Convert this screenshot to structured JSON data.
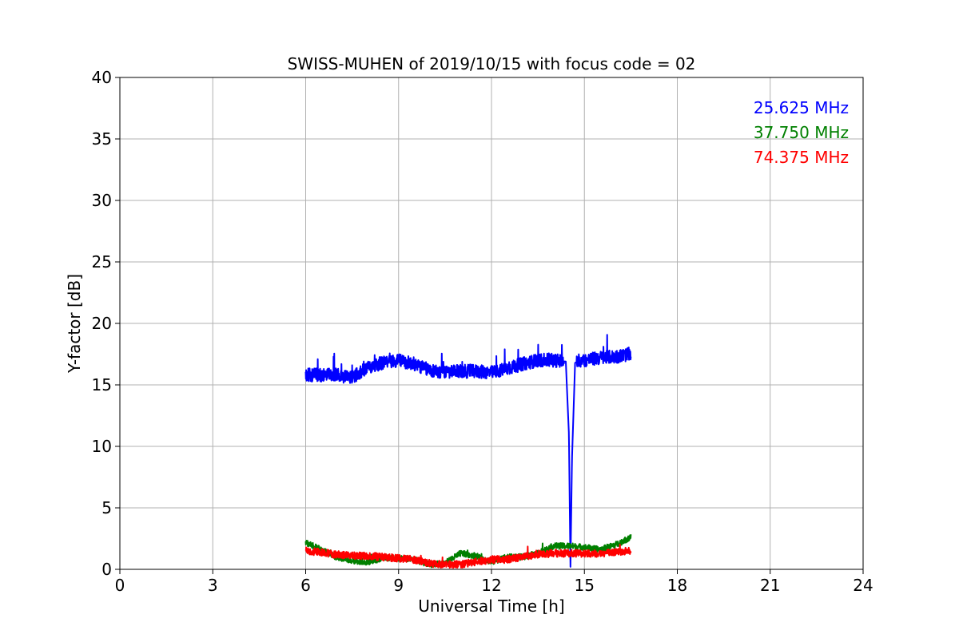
{
  "chart_data": {
    "type": "line",
    "title": "SWISS-MUHEN of 2019/10/15 with focus code = 02",
    "xlabel": "Universal Time [h]",
    "ylabel": "Y-factor [dB]",
    "xlim": [
      0,
      24
    ],
    "ylim": [
      0,
      40
    ],
    "xticks": [
      0,
      3,
      6,
      9,
      12,
      15,
      18,
      21,
      24
    ],
    "yticks": [
      0,
      5,
      10,
      15,
      20,
      25,
      30,
      35,
      40
    ],
    "grid": true,
    "legend_position": "top-right",
    "series": [
      {
        "name": "25.625 MHz",
        "color": "#0000ff",
        "x": [
          6.0,
          6.5,
          7.0,
          7.5,
          8.0,
          8.5,
          9.0,
          9.5,
          10.0,
          10.5,
          11.0,
          11.5,
          12.0,
          12.5,
          13.0,
          13.5,
          14.0,
          14.4,
          14.5,
          14.55,
          14.6,
          14.7,
          15.0,
          15.5,
          16.0,
          16.5
        ],
        "y": [
          15.8,
          15.8,
          15.8,
          15.6,
          16.4,
          16.8,
          17.0,
          16.7,
          16.2,
          16.0,
          16.1,
          16.1,
          16.0,
          16.3,
          16.7,
          17.0,
          17.0,
          16.9,
          11.0,
          0.2,
          9.0,
          16.8,
          17.0,
          17.2,
          17.3,
          17.5
        ]
      },
      {
        "name": "37.750 MHz",
        "color": "#008000",
        "x": [
          6.0,
          6.5,
          7.0,
          7.5,
          8.0,
          8.5,
          9.0,
          9.5,
          10.0,
          10.5,
          11.0,
          11.5,
          12.0,
          12.5,
          13.0,
          13.5,
          14.0,
          14.5,
          15.0,
          15.5,
          16.0,
          16.5
        ],
        "y": [
          2.2,
          1.6,
          1.0,
          0.7,
          0.6,
          0.9,
          0.9,
          0.8,
          0.4,
          0.5,
          1.3,
          1.1,
          0.6,
          1.0,
          1.0,
          1.3,
          1.9,
          1.9,
          1.8,
          1.6,
          2.0,
          2.6
        ]
      },
      {
        "name": "74.375 MHz",
        "color": "#ff0000",
        "x": [
          6.0,
          6.5,
          7.0,
          7.5,
          8.0,
          8.5,
          9.0,
          9.5,
          10.0,
          10.5,
          11.0,
          11.5,
          12.0,
          12.5,
          13.0,
          13.5,
          14.0,
          14.5,
          15.0,
          15.5,
          16.0,
          16.5
        ],
        "y": [
          1.5,
          1.4,
          1.2,
          1.1,
          1.1,
          1.0,
          0.9,
          0.8,
          0.5,
          0.4,
          0.4,
          0.6,
          0.8,
          0.8,
          1.0,
          1.2,
          1.3,
          1.3,
          1.3,
          1.3,
          1.4,
          1.5
        ]
      }
    ]
  }
}
